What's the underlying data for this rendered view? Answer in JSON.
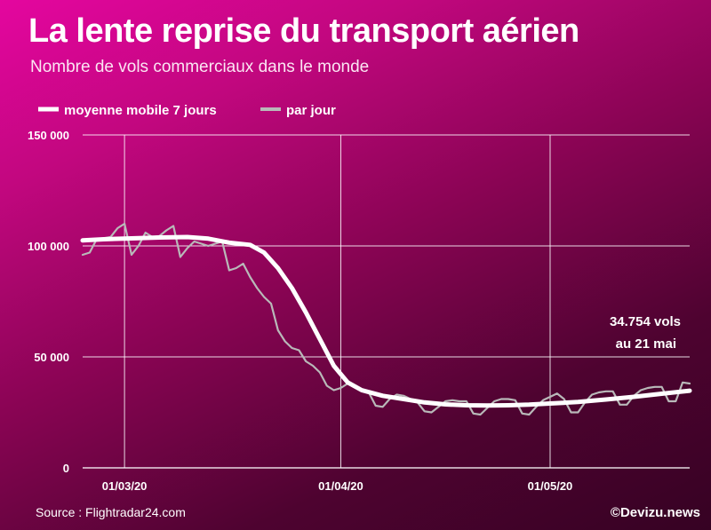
{
  "title": "La lente reprise du transport aérien",
  "subtitle": "Nombre de vols commerciaux dans le monde",
  "source": "Source : Flightradar24.com",
  "credit": "©Devizu.news",
  "colors": {
    "background_top": "#e4069f",
    "background_bottom": "#360223",
    "moving_average": "#ffffff",
    "daily": "#b9b9b9"
  },
  "chart_data": {
    "type": "line",
    "title": "La lente reprise du transport aérien",
    "subtitle": "Nombre de vols commerciaux dans le monde",
    "ylim": [
      0,
      150000
    ],
    "y_ticks": [
      0,
      50000,
      100000,
      150000
    ],
    "y_tick_labels": [
      "0",
      "50 000",
      "100 000",
      "150 000"
    ],
    "x_range": [
      "2020-02-24",
      "2020-05-21"
    ],
    "x_ticks": [
      "2020-03-01",
      "2020-04-01",
      "2020-05-01"
    ],
    "x_tick_labels": [
      "01/03/20",
      "01/04/20",
      "01/05/20"
    ],
    "grid": true,
    "legend_position": "top-left",
    "annotation": {
      "line1": "34.754 vols",
      "line2": "au 21 mai"
    },
    "series": [
      {
        "name": "moyenne mobile 7 jours",
        "points": [
          [
            "2020-02-24",
            102500
          ],
          [
            "2020-02-27",
            103000
          ],
          [
            "2020-03-02",
            103400
          ],
          [
            "2020-03-06",
            103800
          ],
          [
            "2020-03-10",
            104000
          ],
          [
            "2020-03-13",
            103300
          ],
          [
            "2020-03-16",
            101500
          ],
          [
            "2020-03-19",
            100500
          ],
          [
            "2020-03-21",
            97000
          ],
          [
            "2020-03-23",
            90000
          ],
          [
            "2020-03-25",
            81000
          ],
          [
            "2020-03-27",
            70000
          ],
          [
            "2020-03-29",
            58000
          ],
          [
            "2020-03-31",
            46000
          ],
          [
            "2020-04-02",
            38500
          ],
          [
            "2020-04-04",
            35000
          ],
          [
            "2020-04-07",
            32500
          ],
          [
            "2020-04-10",
            31000
          ],
          [
            "2020-04-13",
            29500
          ],
          [
            "2020-04-16",
            28600
          ],
          [
            "2020-04-19",
            28200
          ],
          [
            "2020-04-22",
            28100
          ],
          [
            "2020-04-25",
            28200
          ],
          [
            "2020-04-28",
            28500
          ],
          [
            "2020-05-01",
            29000
          ],
          [
            "2020-05-05",
            29700
          ],
          [
            "2020-05-09",
            30800
          ],
          [
            "2020-05-13",
            32000
          ],
          [
            "2020-05-17",
            33400
          ],
          [
            "2020-05-21",
            34754
          ]
        ]
      },
      {
        "name": "par jour",
        "points": [
          [
            "2020-02-24",
            96000
          ],
          [
            "2020-02-25",
            97000
          ],
          [
            "2020-02-26",
            103000
          ],
          [
            "2020-02-27",
            103500
          ],
          [
            "2020-02-28",
            104000
          ],
          [
            "2020-02-29",
            108000
          ],
          [
            "2020-03-01",
            110000
          ],
          [
            "2020-03-02",
            96000
          ],
          [
            "2020-03-03",
            100000
          ],
          [
            "2020-03-04",
            106000
          ],
          [
            "2020-03-05",
            104000
          ],
          [
            "2020-03-06",
            104500
          ],
          [
            "2020-03-07",
            107000
          ],
          [
            "2020-03-08",
            109000
          ],
          [
            "2020-03-09",
            95000
          ],
          [
            "2020-03-10",
            99000
          ],
          [
            "2020-03-11",
            102000
          ],
          [
            "2020-03-12",
            101000
          ],
          [
            "2020-03-13",
            100000
          ],
          [
            "2020-03-14",
            101000
          ],
          [
            "2020-03-15",
            102000
          ],
          [
            "2020-03-16",
            89000
          ],
          [
            "2020-03-17",
            90000
          ],
          [
            "2020-03-18",
            92000
          ],
          [
            "2020-03-19",
            86000
          ],
          [
            "2020-03-20",
            81000
          ],
          [
            "2020-03-21",
            77000
          ],
          [
            "2020-03-22",
            74000
          ],
          [
            "2020-03-23",
            62000
          ],
          [
            "2020-03-24",
            57000
          ],
          [
            "2020-03-25",
            54000
          ],
          [
            "2020-03-26",
            53000
          ],
          [
            "2020-03-27",
            48000
          ],
          [
            "2020-03-28",
            46000
          ],
          [
            "2020-03-29",
            43000
          ],
          [
            "2020-03-30",
            37000
          ],
          [
            "2020-03-31",
            35000
          ],
          [
            "2020-04-01",
            36000
          ],
          [
            "2020-04-02",
            38000
          ],
          [
            "2020-04-03",
            37000
          ],
          [
            "2020-04-04",
            35000
          ],
          [
            "2020-04-05",
            34000
          ],
          [
            "2020-04-06",
            28000
          ],
          [
            "2020-04-07",
            27500
          ],
          [
            "2020-04-08",
            31000
          ],
          [
            "2020-04-09",
            33000
          ],
          [
            "2020-04-10",
            32500
          ],
          [
            "2020-04-11",
            31000
          ],
          [
            "2020-04-12",
            29500
          ],
          [
            "2020-04-13",
            25500
          ],
          [
            "2020-04-14",
            25000
          ],
          [
            "2020-04-15",
            27500
          ],
          [
            "2020-04-16",
            30000
          ],
          [
            "2020-04-17",
            30500
          ],
          [
            "2020-04-18",
            30000
          ],
          [
            "2020-04-19",
            30000
          ],
          [
            "2020-04-20",
            24500
          ],
          [
            "2020-04-21",
            24000
          ],
          [
            "2020-04-22",
            27000
          ],
          [
            "2020-04-23",
            30000
          ],
          [
            "2020-04-24",
            31000
          ],
          [
            "2020-04-25",
            31000
          ],
          [
            "2020-04-26",
            30500
          ],
          [
            "2020-04-27",
            24500
          ],
          [
            "2020-04-28",
            24000
          ],
          [
            "2020-04-29",
            27500
          ],
          [
            "2020-04-30",
            30500
          ],
          [
            "2020-05-01",
            32000
          ],
          [
            "2020-05-02",
            33500
          ],
          [
            "2020-05-03",
            31000
          ],
          [
            "2020-05-04",
            25000
          ],
          [
            "2020-05-05",
            25000
          ],
          [
            "2020-05-06",
            29500
          ],
          [
            "2020-05-07",
            33000
          ],
          [
            "2020-05-08",
            34000
          ],
          [
            "2020-05-09",
            34500
          ],
          [
            "2020-05-10",
            34500
          ],
          [
            "2020-05-11",
            28500
          ],
          [
            "2020-05-12",
            28500
          ],
          [
            "2020-05-13",
            32500
          ],
          [
            "2020-05-14",
            35000
          ],
          [
            "2020-05-15",
            36000
          ],
          [
            "2020-05-16",
            36500
          ],
          [
            "2020-05-17",
            36500
          ],
          [
            "2020-05-18",
            30000
          ],
          [
            "2020-05-19",
            30000
          ],
          [
            "2020-05-20",
            38500
          ],
          [
            "2020-05-21",
            38000
          ]
        ]
      }
    ]
  }
}
